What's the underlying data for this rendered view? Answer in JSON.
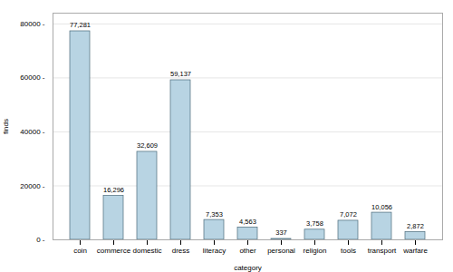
{
  "chart_data": {
    "type": "bar",
    "categories": [
      "coin",
      "commerce",
      "domestic",
      "dress",
      "literacy",
      "other",
      "personal",
      "religion",
      "tools",
      "transport",
      "warfare"
    ],
    "values": [
      77281,
      16296,
      32609,
      59137,
      7353,
      4563,
      337,
      3758,
      7072,
      10056,
      2872
    ],
    "value_labels": [
      "77,281",
      "16,296",
      "32,609",
      "59,137",
      "7,353",
      "4,563",
      "337",
      "3,758",
      "7,072",
      "10,056",
      "2,872"
    ],
    "data_labels": true,
    "color": "#b8d4e3",
    "xlabel": "category",
    "ylabel": "finds",
    "ylim": [
      0,
      84000
    ],
    "yticks": [
      {
        "value": 0,
        "label": "0 -"
      },
      {
        "value": 20000,
        "label": "20000 -"
      },
      {
        "value": 40000,
        "label": "40000 -"
      },
      {
        "value": 60000,
        "label": "60000 -"
      },
      {
        "value": 80000,
        "label": "80000 -"
      }
    ],
    "grid": true
  }
}
